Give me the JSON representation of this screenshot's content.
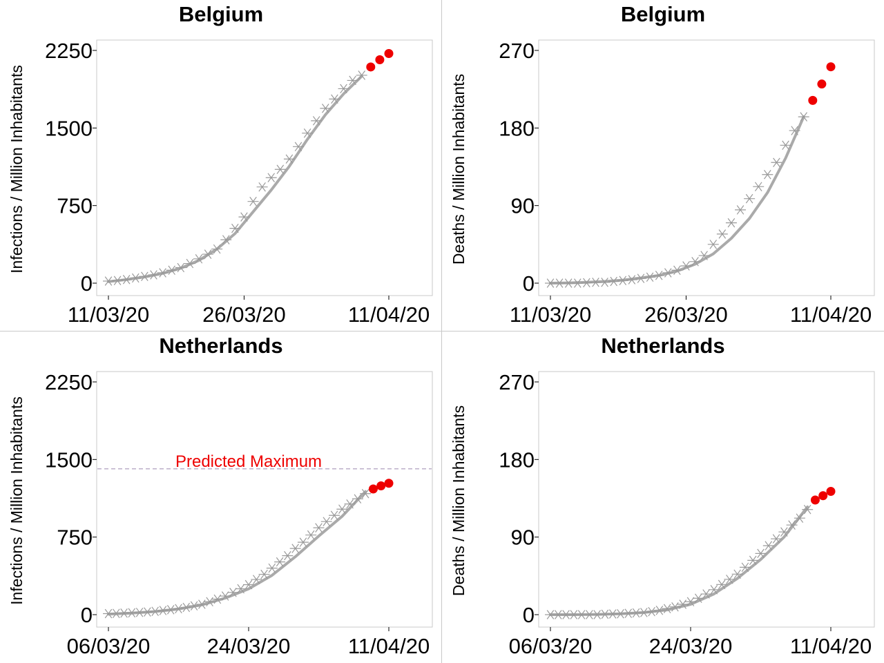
{
  "chart_data": [
    {
      "type": "line",
      "title": "Belgium",
      "ylabel": "Infections / Million Inhabitants",
      "xlabel": "",
      "ylim": [
        0,
        2250
      ],
      "yticks": [
        "0",
        "750",
        "1500",
        "2250"
      ],
      "xticks": [
        {
          "label": "11/03/20",
          "day": 0
        },
        {
          "label": "26/03/20",
          "day": 15
        },
        {
          "label": "11/04/20",
          "day": 31
        }
      ],
      "xlim": [
        -1,
        32
      ],
      "series": [
        {
          "role": "observed",
          "marker": "asterisk",
          "color": "#999999",
          "x": [
            0,
            1,
            2,
            3,
            4,
            5,
            6,
            7,
            8,
            9,
            10,
            11,
            12,
            13,
            14,
            15,
            16,
            17,
            18,
            19,
            20,
            21,
            22,
            23,
            24,
            25,
            26,
            27,
            28
          ],
          "values": [
            20,
            25,
            35,
            50,
            65,
            80,
            100,
            125,
            150,
            190,
            235,
            280,
            330,
            420,
            530,
            640,
            790,
            930,
            1020,
            1100,
            1200,
            1320,
            1450,
            1570,
            1690,
            1780,
            1880,
            1960,
            2010
          ]
        },
        {
          "role": "fitted",
          "marker": "none",
          "color": "#aaaaaa",
          "x": [
            0,
            2,
            4,
            6,
            8,
            10,
            12,
            14,
            16,
            18,
            20,
            22,
            24,
            26,
            28
          ],
          "values": [
            15,
            35,
            60,
            95,
            145,
            220,
            330,
            480,
            690,
            900,
            1130,
            1390,
            1630,
            1830,
            2000
          ]
        },
        {
          "role": "forecast",
          "marker": "dot",
          "color": "#ee0000",
          "x": [
            29,
            30,
            31
          ],
          "values": [
            2090,
            2160,
            2220
          ]
        }
      ]
    },
    {
      "type": "line",
      "title": "Belgium",
      "ylabel": "Deaths / Million Inhabitants",
      "xlabel": "",
      "ylim": [
        0,
        270
      ],
      "yticks": [
        "0",
        "90",
        "180",
        "270"
      ],
      "xticks": [
        {
          "label": "11/03/20",
          "day": 0
        },
        {
          "label": "26/03/20",
          "day": 15
        },
        {
          "label": "11/04/20",
          "day": 31
        }
      ],
      "xlim": [
        -1,
        32
      ],
      "series": [
        {
          "role": "observed",
          "marker": "asterisk",
          "color": "#999999",
          "x": [
            0,
            1,
            2,
            3,
            4,
            5,
            6,
            7,
            8,
            9,
            10,
            11,
            12,
            13,
            14,
            15,
            16,
            17,
            18,
            19,
            20,
            21,
            22,
            23,
            24,
            25,
            26,
            27,
            28
          ],
          "values": [
            0,
            0,
            0,
            0,
            0.5,
            1,
            1,
            2,
            3,
            4,
            5.5,
            7,
            9,
            12,
            15,
            20,
            25,
            32,
            45,
            57,
            70,
            85,
            98,
            112,
            126,
            140,
            160,
            177,
            193
          ]
        },
        {
          "role": "fitted",
          "marker": "none",
          "color": "#aaaaaa",
          "x": [
            0,
            2,
            4,
            6,
            8,
            10,
            12,
            14,
            16,
            18,
            20,
            22,
            24,
            26,
            28
          ],
          "values": [
            0,
            0.3,
            1,
            2,
            3.5,
            6,
            9,
            14,
            22,
            34,
            52,
            75,
            105,
            145,
            193
          ]
        },
        {
          "role": "forecast",
          "marker": "dot",
          "color": "#ee0000",
          "x": [
            29,
            30,
            31
          ],
          "values": [
            212,
            231,
            251
          ]
        }
      ]
    },
    {
      "type": "line",
      "title": "Netherlands",
      "ylabel": "Infections / Million Inhabitants",
      "xlabel": "",
      "ylim": [
        0,
        2250
      ],
      "yticks": [
        "0",
        "750",
        "1500",
        "2250"
      ],
      "xticks": [
        {
          "label": "06/03/20",
          "day": 0
        },
        {
          "label": "24/03/20",
          "day": 18
        },
        {
          "label": "11/04/20",
          "day": 36
        }
      ],
      "xlim": [
        -1.1,
        37
      ],
      "reference_line": {
        "value": 1410,
        "label": "Predicted Maximum",
        "color": "#ee0000"
      },
      "series": [
        {
          "role": "observed",
          "marker": "asterisk",
          "color": "#999999",
          "x": [
            0,
            1,
            2,
            3,
            4,
            5,
            6,
            7,
            8,
            9,
            10,
            11,
            12,
            13,
            14,
            15,
            16,
            17,
            18,
            19,
            20,
            21,
            22,
            23,
            24,
            25,
            26,
            27,
            28,
            29,
            30,
            31,
            32,
            33
          ],
          "values": [
            10,
            12,
            15,
            18,
            22,
            26,
            32,
            40,
            48,
            58,
            70,
            85,
            100,
            125,
            150,
            180,
            215,
            250,
            290,
            340,
            390,
            450,
            510,
            570,
            640,
            700,
            770,
            840,
            900,
            960,
            1020,
            1070,
            1120,
            1170
          ]
        },
        {
          "role": "fitted",
          "marker": "none",
          "color": "#aaaaaa",
          "x": [
            0,
            3,
            6,
            9,
            12,
            15,
            18,
            21,
            24,
            27,
            30,
            33
          ],
          "values": [
            5,
            15,
            30,
            55,
            95,
            160,
            250,
            380,
            560,
            760,
            950,
            1190
          ]
        },
        {
          "role": "forecast",
          "marker": "dot",
          "color": "#ee0000",
          "x": [
            34,
            35,
            36
          ],
          "values": [
            1215,
            1245,
            1270
          ]
        }
      ]
    },
    {
      "type": "line",
      "title": "Netherlands",
      "ylabel": "Deaths / Million Inhabitants",
      "xlabel": "",
      "ylim": [
        0,
        270
      ],
      "yticks": [
        "0",
        "90",
        "180",
        "270"
      ],
      "xticks": [
        {
          "label": "06/03/20",
          "day": 0
        },
        {
          "label": "24/03/20",
          "day": 18
        },
        {
          "label": "11/04/20",
          "day": 36
        }
      ],
      "xlim": [
        -1.1,
        37
      ],
      "series": [
        {
          "role": "observed",
          "marker": "asterisk",
          "color": "#999999",
          "x": [
            0,
            1,
            2,
            3,
            4,
            5,
            6,
            7,
            8,
            9,
            10,
            11,
            12,
            13,
            14,
            15,
            16,
            17,
            18,
            19,
            20,
            21,
            22,
            23,
            24,
            25,
            26,
            27,
            28,
            29,
            30,
            31,
            32,
            33
          ],
          "values": [
            0,
            0,
            0,
            0,
            0,
            0,
            0,
            0.5,
            0.8,
            1,
            1.5,
            2,
            2.5,
            3.5,
            5,
            7,
            9,
            12,
            15,
            19,
            24,
            29,
            35,
            41,
            47,
            55,
            63,
            71,
            80,
            88,
            96,
            104,
            112,
            122
          ]
        },
        {
          "role": "fitted",
          "marker": "none",
          "color": "#aaaaaa",
          "x": [
            0,
            3,
            6,
            9,
            12,
            15,
            18,
            21,
            24,
            27,
            30,
            33
          ],
          "values": [
            0,
            0,
            0.3,
            1,
            2.5,
            5.5,
            12,
            24,
            42,
            64,
            90,
            125
          ]
        },
        {
          "role": "forecast",
          "marker": "dot",
          "color": "#ee0000",
          "x": [
            34,
            35,
            36
          ],
          "values": [
            133,
            138,
            143
          ]
        }
      ]
    }
  ]
}
